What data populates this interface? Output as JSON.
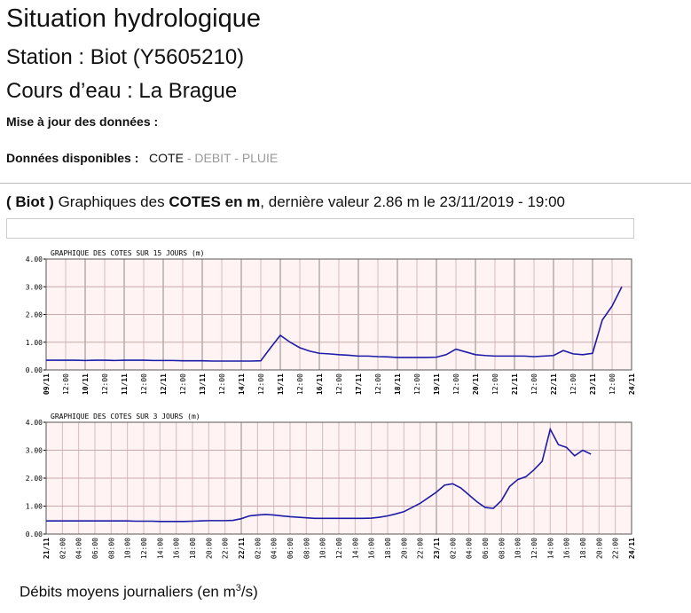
{
  "header": {
    "title": "Situation hydrologique",
    "station": "Station : Biot (Y5605210)",
    "river": "Cours d’eau : La Brague",
    "update_label": "Mise à jour des données :",
    "available_label": "Données disponibles :",
    "available": [
      "COTE",
      "DEBIT",
      "PLUIE"
    ],
    "separator": "-"
  },
  "section": {
    "station": "( Biot )",
    "prefix": "Graphiques des",
    "measure": "COTES en m",
    "suffix": ", dernière valeur 2.86 m le 23/11/2019 - 19:00"
  },
  "footer": {
    "text": "Débits moyens journaliers (en m",
    "superscript": "3",
    "suffix": "/s)"
  },
  "chart_data": [
    {
      "type": "line",
      "title": "GRAPHIQUE DES COTES SUR 15 JOURS (m)",
      "color": "#1c1ca8",
      "categories": [
        "09/11",
        null,
        "12:00",
        null,
        "10/11",
        null,
        "12:00",
        null,
        "11/11",
        null,
        "12:00",
        null,
        "12/11",
        null,
        "12:00",
        null,
        "13/11",
        null,
        "12:00",
        null,
        "14/11",
        null,
        "12:00",
        null,
        "15/11",
        null,
        "12:00",
        null,
        "16/11",
        null,
        "12:00",
        null,
        "17/11",
        null,
        "12:00",
        null,
        "18/11",
        null,
        "12:00",
        null,
        "19/11",
        null,
        "12:00",
        null,
        "20/11",
        null,
        "12:00",
        null,
        "21/11",
        null,
        "12:00",
        null,
        "22/11",
        null,
        "12:00",
        null,
        "23/11",
        null,
        "12:00",
        null,
        "24/11"
      ],
      "values": [
        0.35,
        0.35,
        0.35,
        0.35,
        0.34,
        0.35,
        0.35,
        0.34,
        0.35,
        0.35,
        0.35,
        0.34,
        0.34,
        0.34,
        0.33,
        0.33,
        0.33,
        0.32,
        0.32,
        0.32,
        0.32,
        0.32,
        0.33,
        0.8,
        1.25,
        1.0,
        0.8,
        0.68,
        0.6,
        0.58,
        0.55,
        0.53,
        0.5,
        0.5,
        0.48,
        0.47,
        0.45,
        0.45,
        0.45,
        0.45,
        0.46,
        0.55,
        0.75,
        0.65,
        0.55,
        0.52,
        0.5,
        0.5,
        0.5,
        0.5,
        0.48,
        0.5,
        0.52,
        0.7,
        0.58,
        0.55,
        0.6,
        1.8,
        2.3,
        3.0,
        null
      ],
      "ylim": [
        0,
        4
      ],
      "yticks": [
        {
          "value": 0,
          "label": "0.00"
        },
        {
          "value": 1,
          "label": "1.00"
        },
        {
          "value": 2,
          "label": "2.00"
        },
        {
          "value": 3,
          "label": "3.00"
        },
        {
          "value": 4,
          "label": "4.00"
        }
      ],
      "grid": true
    },
    {
      "type": "line",
      "title": "GRAPHIQUE DES COTES SUR 3 JOURS (m)",
      "color": "#1c1ca8",
      "categories": [
        "21/11",
        null,
        "02:00",
        null,
        "04:00",
        null,
        "06:00",
        null,
        "08:00",
        null,
        "10:00",
        null,
        "12:00",
        null,
        "14:00",
        null,
        "16:00",
        null,
        "18:00",
        null,
        "20:00",
        null,
        "22:00",
        null,
        "22/11",
        null,
        "02:00",
        null,
        "04:00",
        null,
        "06:00",
        null,
        "08:00",
        null,
        "10:00",
        null,
        "12:00",
        null,
        "14:00",
        null,
        "16:00",
        null,
        "18:00",
        null,
        "20:00",
        null,
        "22:00",
        null,
        "23/11",
        null,
        "02:00",
        null,
        "04:00",
        null,
        "06:00",
        null,
        "08:00",
        null,
        "10:00",
        null,
        "12:00",
        null,
        "14:00",
        null,
        "16:00",
        null,
        "18:00",
        null,
        "20:00",
        null,
        "22:00",
        null,
        "24/11"
      ],
      "values": [
        0.47,
        0.47,
        0.47,
        0.47,
        0.47,
        0.47,
        0.47,
        0.47,
        0.47,
        0.47,
        0.47,
        0.46,
        0.46,
        0.46,
        0.45,
        0.45,
        0.45,
        0.45,
        0.46,
        0.47,
        0.48,
        0.48,
        0.48,
        0.49,
        0.55,
        0.65,
        0.68,
        0.7,
        0.68,
        0.65,
        0.62,
        0.6,
        0.58,
        0.56,
        0.56,
        0.56,
        0.56,
        0.56,
        0.56,
        0.56,
        0.57,
        0.6,
        0.65,
        0.72,
        0.8,
        0.95,
        1.1,
        1.3,
        1.5,
        1.75,
        1.8,
        1.65,
        1.4,
        1.15,
        0.95,
        0.92,
        1.2,
        1.7,
        1.95,
        2.05,
        2.3,
        2.6,
        3.75,
        3.2,
        3.1,
        2.8,
        3.0,
        2.86,
        null,
        null,
        null,
        null,
        null
      ],
      "ylim": [
        0,
        4
      ],
      "yticks": [
        {
          "value": 0,
          "label": "0.00"
        },
        {
          "value": 1,
          "label": "1.00"
        },
        {
          "value": 2,
          "label": "2.00"
        },
        {
          "value": 3,
          "label": "3.00"
        },
        {
          "value": 4,
          "label": "4.00"
        }
      ],
      "grid": true
    }
  ]
}
